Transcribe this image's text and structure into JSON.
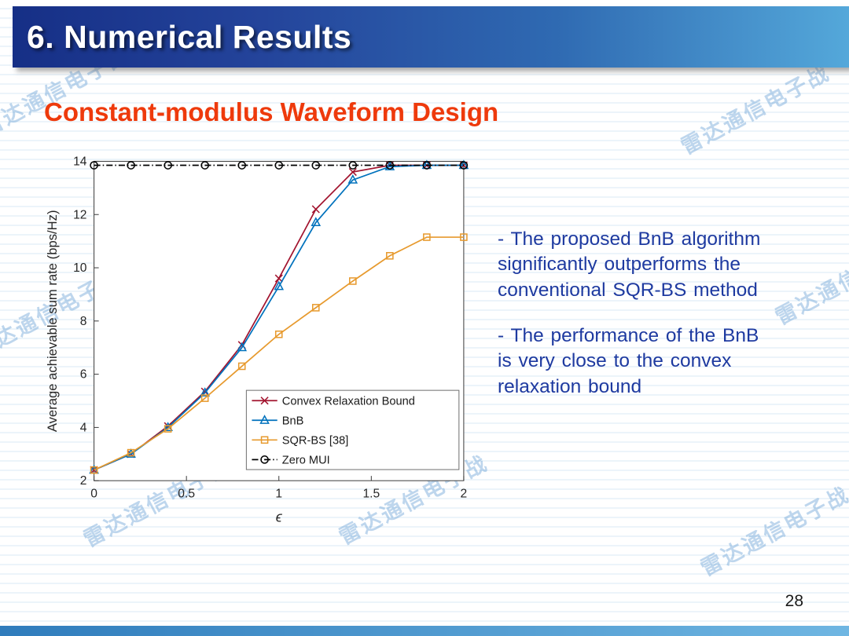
{
  "slide": {
    "title": "6. Numerical Results",
    "heading": "Constant-modulus Waveform Design",
    "bullets": [
      "- The proposed BnB algorithm\nsignificantly outperforms the\nconventional SQR-BS method",
      "- The performance of the BnB\nis very close to the convex\nrelaxation bound"
    ],
    "page_number": "28",
    "watermark_text": "雷达通信电子战",
    "colors": {
      "header_gradient_start": "#162F86",
      "header_gradient_end": "#54A8DA",
      "heading_text": "#EE3A0C",
      "body_text": "#1E3AA0",
      "footer_bar_start": "#2F7CBC",
      "footer_bar_end": "#6FB6E2"
    }
  },
  "chart_data": {
    "type": "line",
    "title": "",
    "xlabel": "ϵ",
    "ylabel": "Average achievable sum rate (bps/Hz)",
    "xlim": [
      0,
      2
    ],
    "ylim": [
      2,
      14
    ],
    "xticks": [
      0,
      0.5,
      1,
      1.5,
      2
    ],
    "yticks": [
      2,
      4,
      6,
      8,
      10,
      12,
      14
    ],
    "grid": false,
    "legend_position": "inside-bottom-right",
    "x": [
      0,
      0.2,
      0.4,
      0.6,
      0.8,
      1.0,
      1.2,
      1.4,
      1.6,
      1.8,
      2.0
    ],
    "series": [
      {
        "name": "Convex Relaxation Bound",
        "color": "#A2142F",
        "marker": "x",
        "linestyle": "solid",
        "values": [
          2.4,
          3.0,
          4.05,
          5.35,
          7.1,
          9.6,
          12.2,
          13.6,
          13.85,
          13.85,
          13.85
        ]
      },
      {
        "name": "BnB",
        "color": "#0072BD",
        "marker": "triangle",
        "linestyle": "solid",
        "values": [
          2.4,
          3.0,
          4.0,
          5.3,
          7.0,
          9.3,
          11.7,
          13.3,
          13.8,
          13.85,
          13.85
        ]
      },
      {
        "name": "SQR-BS [38]",
        "color": "#E79A2E",
        "marker": "square",
        "linestyle": "solid",
        "values": [
          2.4,
          3.05,
          3.95,
          5.1,
          6.3,
          7.5,
          8.5,
          9.5,
          10.45,
          11.15,
          11.15
        ]
      },
      {
        "name": "Zero MUI",
        "color": "#000000",
        "marker": "circle",
        "linestyle": "dashdot",
        "values": [
          13.85,
          13.85,
          13.85,
          13.85,
          13.85,
          13.85,
          13.85,
          13.85,
          13.85,
          13.85,
          13.85
        ]
      }
    ]
  }
}
